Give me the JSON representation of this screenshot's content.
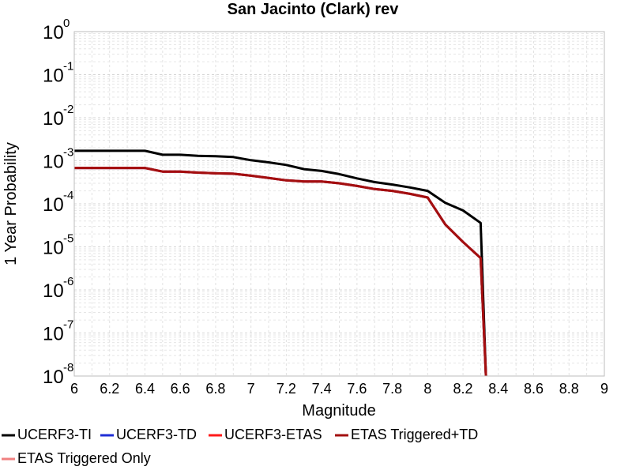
{
  "chart_data": {
    "type": "line",
    "title": "San Jacinto (Clark) rev",
    "xlabel": "Magnitude",
    "ylabel": "1 Year Probability",
    "x_scale": "linear",
    "y_scale": "log",
    "xlim": [
      6,
      9
    ],
    "ylim": [
      1e-08,
      1
    ],
    "grid": true,
    "legend_position": "bottom",
    "x_ticks": [
      {
        "value": 6,
        "label": "6"
      },
      {
        "value": 6.2,
        "label": "6.2"
      },
      {
        "value": 6.4,
        "label": "6.4"
      },
      {
        "value": 6.6,
        "label": "6.6"
      },
      {
        "value": 6.8,
        "label": "6.8"
      },
      {
        "value": 7,
        "label": "7"
      },
      {
        "value": 7.2,
        "label": "7.2"
      },
      {
        "value": 7.4,
        "label": "7.4"
      },
      {
        "value": 7.6,
        "label": "7.6"
      },
      {
        "value": 7.8,
        "label": "7.8"
      },
      {
        "value": 8,
        "label": "8"
      },
      {
        "value": 8.2,
        "label": "8.2"
      },
      {
        "value": 8.4,
        "label": "8.4"
      },
      {
        "value": 8.6,
        "label": "8.6"
      },
      {
        "value": 8.8,
        "label": "8.8"
      },
      {
        "value": 9,
        "label": "9"
      }
    ],
    "y_ticks": [
      {
        "value": 1,
        "base": "10",
        "exp": "0"
      },
      {
        "value": 0.1,
        "base": "10",
        "exp": "-1"
      },
      {
        "value": 0.01,
        "base": "10",
        "exp": "-2"
      },
      {
        "value": 0.001,
        "base": "10",
        "exp": "-3"
      },
      {
        "value": 0.0001,
        "base": "10",
        "exp": "-4"
      },
      {
        "value": 1e-05,
        "base": "10",
        "exp": "-5"
      },
      {
        "value": 1e-06,
        "base": "10",
        "exp": "-6"
      },
      {
        "value": 1e-07,
        "base": "10",
        "exp": "-7"
      },
      {
        "value": 1e-08,
        "base": "10",
        "exp": "-8"
      }
    ],
    "series": [
      {
        "name": "UCERF3-TI",
        "color": "#000000",
        "x": [
          6.0,
          6.1,
          6.2,
          6.3,
          6.4,
          6.5,
          6.6,
          6.7,
          6.8,
          6.9,
          7.0,
          7.1,
          7.2,
          7.3,
          7.4,
          7.5,
          7.6,
          7.7,
          7.8,
          7.9,
          8.0,
          8.1,
          8.2,
          8.3,
          8.33
        ],
        "y": [
          0.0017,
          0.0017,
          0.0017,
          0.0017,
          0.0017,
          0.00138,
          0.00138,
          0.0013,
          0.00128,
          0.00122,
          0.00103,
          0.00092,
          0.0008,
          0.00064,
          0.00058,
          0.00049,
          0.00039,
          0.00032,
          0.00028,
          0.00024,
          0.0002,
          0.000105,
          7e-05,
          3.6e-05,
          1e-08
        ]
      },
      {
        "name": "UCERF3-TD",
        "color": "#1f2ed6",
        "x": [
          6.0,
          6.1,
          6.2,
          6.3,
          6.4,
          6.5,
          6.6,
          6.7,
          6.8,
          6.9,
          7.0,
          7.1,
          7.2,
          7.3,
          7.4,
          7.5,
          7.6,
          7.7,
          7.8,
          7.9,
          8.0,
          8.1,
          8.2,
          8.3,
          8.33
        ],
        "y": [
          0.00068,
          0.00068,
          0.00068,
          0.00068,
          0.00068,
          0.00056,
          0.00056,
          0.00053,
          0.00051,
          0.0005,
          0.00045,
          0.0004,
          0.00035,
          0.00033,
          0.00033,
          0.0003,
          0.00026,
          0.00022,
          0.0002,
          0.00017,
          0.00014,
          3.3e-05,
          1.3e-05,
          5.5e-06,
          1e-08
        ]
      },
      {
        "name": "UCERF3-ETAS",
        "color": "#ff1a1a",
        "x": [
          6.0,
          6.1,
          6.2,
          6.3,
          6.4,
          6.5,
          6.6,
          6.7,
          6.8,
          6.9,
          7.0,
          7.1,
          7.2,
          7.3,
          7.4,
          7.5,
          7.6,
          7.7,
          7.8,
          7.9,
          8.0,
          8.1,
          8.2,
          8.3,
          8.33
        ],
        "y": [
          0.00068,
          0.00068,
          0.00068,
          0.00068,
          0.00068,
          0.00056,
          0.00056,
          0.00053,
          0.00051,
          0.0005,
          0.00045,
          0.0004,
          0.00035,
          0.00033,
          0.00033,
          0.0003,
          0.00026,
          0.00022,
          0.0002,
          0.00017,
          0.00014,
          3.3e-05,
          1.3e-05,
          5.5e-06,
          1e-08
        ]
      },
      {
        "name": "ETAS Triggered+TD",
        "color": "#a30f0f",
        "x": [
          6.0,
          6.1,
          6.2,
          6.3,
          6.4,
          6.5,
          6.6,
          6.7,
          6.8,
          6.9,
          7.0,
          7.1,
          7.2,
          7.3,
          7.4,
          7.5,
          7.6,
          7.7,
          7.8,
          7.9,
          8.0,
          8.1,
          8.2,
          8.3,
          8.33
        ],
        "y": [
          0.00068,
          0.00068,
          0.00068,
          0.00068,
          0.00068,
          0.00056,
          0.00056,
          0.00053,
          0.00051,
          0.0005,
          0.00045,
          0.0004,
          0.00035,
          0.00033,
          0.00033,
          0.0003,
          0.00026,
          0.00022,
          0.0002,
          0.00017,
          0.00014,
          3.3e-05,
          1.3e-05,
          5.5e-06,
          1e-08
        ]
      },
      {
        "name": "ETAS Triggered Only",
        "color": "#f08080",
        "x": [],
        "y": []
      }
    ]
  }
}
